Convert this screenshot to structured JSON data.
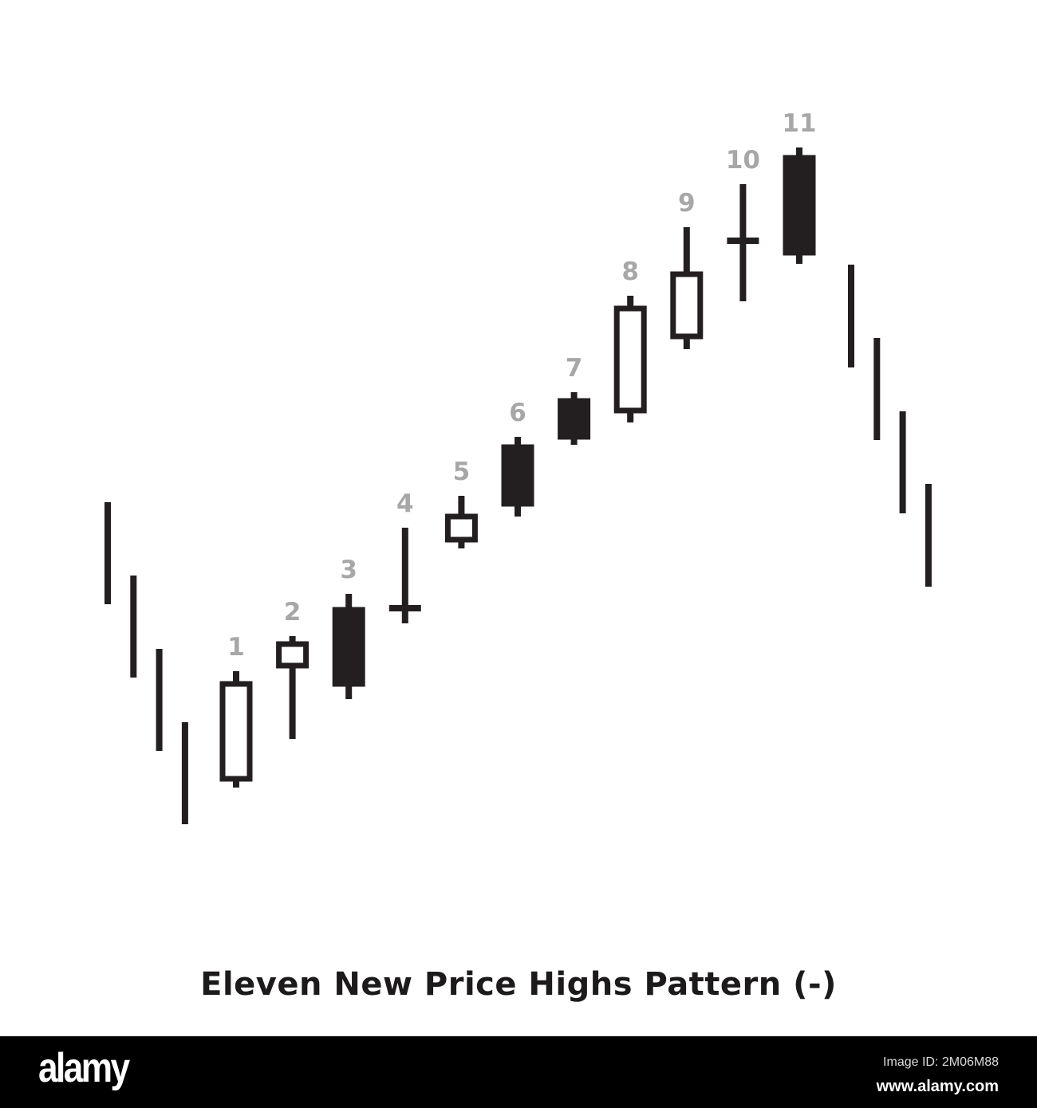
{
  "chart_data": {
    "type": "candlestick",
    "title": "Eleven New Price Highs Pattern (-)",
    "price_axis_shown": false,
    "grid": false,
    "colors": {
      "bar": "#231f20",
      "label": "#a7a7a7",
      "bullish_body": "#ffffff",
      "bearish_body": "#231f20"
    },
    "lead_in_bars": [
      {
        "high": 47.0,
        "low": 34.2
      },
      {
        "high": 37.8,
        "low": 25.0
      },
      {
        "high": 28.6,
        "low": 15.8
      },
      {
        "high": 19.4,
        "low": 6.6
      }
    ],
    "candles": [
      {
        "label": "1",
        "open": 12.0,
        "high": 25.8,
        "low": 11.2,
        "close": 24.5
      },
      {
        "label": "2",
        "open": 26.2,
        "high": 30.2,
        "low": 17.3,
        "close": 29.5
      },
      {
        "label": "3",
        "open": 33.8,
        "high": 35.5,
        "low": 22.3,
        "close": 23.9
      },
      {
        "label": "4",
        "open": 33.7,
        "high": 43.8,
        "low": 31.8,
        "close": 33.7
      },
      {
        "label": "5",
        "open": 42.0,
        "high": 47.8,
        "low": 41.2,
        "close": 45.5
      },
      {
        "label": "6",
        "open": 54.2,
        "high": 55.2,
        "low": 45.2,
        "close": 46.5
      },
      {
        "label": "7",
        "open": 60.0,
        "high": 60.8,
        "low": 54.2,
        "close": 54.9
      },
      {
        "label": "8",
        "open": 58.2,
        "high": 72.9,
        "low": 57.0,
        "close": 71.6
      },
      {
        "label": "9",
        "open": 67.5,
        "high": 81.5,
        "low": 66.2,
        "close": 75.9
      },
      {
        "label": "10",
        "open": 79.8,
        "high": 86.9,
        "low": 72.2,
        "close": 79.8
      },
      {
        "label": "11",
        "open": 90.5,
        "high": 91.5,
        "low": 76.9,
        "close": 78.0
      }
    ],
    "follow_bars": [
      {
        "high": 76.8,
        "low": 63.9
      },
      {
        "high": 67.6,
        "low": 54.8
      },
      {
        "high": 58.4,
        "low": 45.6
      },
      {
        "high": 49.3,
        "low": 36.4
      }
    ]
  },
  "watermark": {
    "logo": "alamy",
    "image_id": "Image ID: 2M06M88",
    "url": "www.alamy.com"
  }
}
